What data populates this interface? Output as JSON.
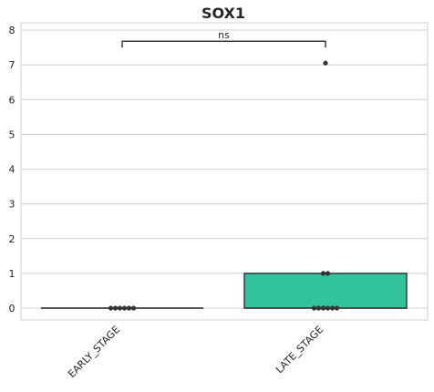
{
  "chart_data": {
    "type": "box",
    "title": "SOX1",
    "xlabel": "",
    "ylabel": "",
    "ylim": [
      -0.35,
      8.2
    ],
    "yticks": [
      0,
      1,
      2,
      3,
      4,
      5,
      6,
      7,
      8
    ],
    "grid": "horizontal",
    "categories": [
      "EARLY_STAGE",
      "LATE_STAGE"
    ],
    "boxes": [
      {
        "category": "EARLY_STAGE",
        "q1": 0,
        "median": 0,
        "q3": 0,
        "whisker_low": 0,
        "whisker_high": 0,
        "color": "#ffffff"
      },
      {
        "category": "LATE_STAGE",
        "q1": 0,
        "median": 0,
        "q3": 1.0,
        "whisker_low": 0,
        "whisker_high": 1.0,
        "color": "#33c39c"
      }
    ],
    "points": {
      "EARLY_STAGE": [
        0,
        0,
        0,
        0,
        0,
        0
      ],
      "LATE_STAGE": [
        0,
        0,
        0,
        0,
        0,
        0,
        1.0,
        1.0,
        7.05
      ]
    },
    "annotation": {
      "text": "ns",
      "between": [
        "EARLY_STAGE",
        "LATE_STAGE"
      ],
      "y": 7.68
    },
    "colors": {
      "late_box": "#33c39c",
      "points": "#333333",
      "grid": "#cccccc"
    }
  }
}
